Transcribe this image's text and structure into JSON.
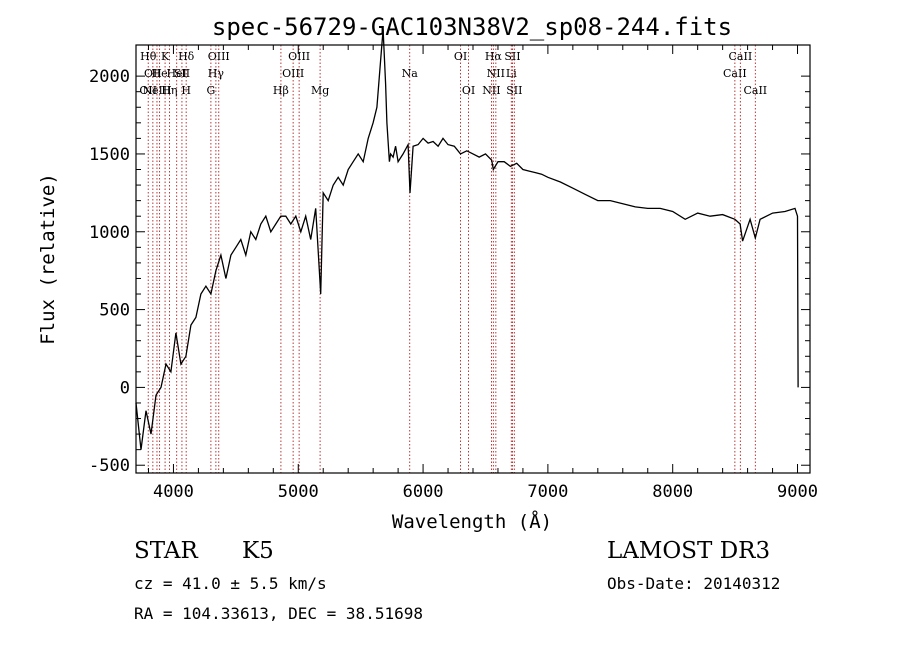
{
  "chart_data": {
    "type": "line",
    "title": "spec-56729-GAC103N38V2_sp08-244.fits",
    "xlabel": "Wavelength (Å)",
    "ylabel": "Flux (relative)",
    "xlim": [
      3700,
      9100
    ],
    "ylim": [
      -550,
      2200
    ],
    "xticks": [
      4000,
      5000,
      6000,
      7000,
      8000,
      9000
    ],
    "yticks": [
      -500,
      0,
      500,
      1000,
      1500,
      2000
    ],
    "line_color": "#000000",
    "marker_color": "#b22222",
    "series": [
      {
        "name": "flux",
        "x": [
          3700,
          3740,
          3780,
          3820,
          3860,
          3900,
          3940,
          3980,
          4020,
          4060,
          4100,
          4140,
          4180,
          4220,
          4260,
          4300,
          4340,
          4380,
          4420,
          4460,
          4500,
          4540,
          4580,
          4620,
          4660,
          4700,
          4740,
          4780,
          4820,
          4860,
          4900,
          4940,
          4980,
          5020,
          5060,
          5100,
          5140,
          5180,
          5200,
          5240,
          5280,
          5320,
          5360,
          5400,
          5440,
          5480,
          5520,
          5560,
          5600,
          5630,
          5660,
          5680,
          5700,
          5710,
          5720,
          5730,
          5740,
          5760,
          5780,
          5800,
          5840,
          5880,
          5895,
          5920,
          5960,
          6000,
          6040,
          6080,
          6120,
          6160,
          6200,
          6250,
          6300,
          6350,
          6400,
          6450,
          6500,
          6550,
          6563,
          6600,
          6650,
          6700,
          6750,
          6800,
          6850,
          6900,
          6950,
          7000,
          7100,
          7200,
          7300,
          7400,
          7500,
          7600,
          7700,
          7800,
          7900,
          8000,
          8100,
          8200,
          8300,
          8400,
          8498,
          8540,
          8560,
          8620,
          8662,
          8700,
          8800,
          8900,
          8980,
          9000,
          9005
        ],
        "y": [
          -100,
          -400,
          -150,
          -300,
          -50,
          0,
          150,
          100,
          350,
          150,
          200,
          400,
          450,
          600,
          650,
          600,
          750,
          850,
          700,
          850,
          900,
          950,
          850,
          1000,
          950,
          1050,
          1100,
          1000,
          1050,
          1100,
          1100,
          1050,
          1100,
          1000,
          1100,
          950,
          1150,
          600,
          1250,
          1200,
          1300,
          1350,
          1300,
          1400,
          1450,
          1500,
          1450,
          1600,
          1700,
          1800,
          2100,
          2300,
          1950,
          1700,
          1580,
          1450,
          1500,
          1480,
          1550,
          1450,
          1500,
          1560,
          1250,
          1550,
          1560,
          1600,
          1570,
          1580,
          1550,
          1600,
          1560,
          1550,
          1500,
          1520,
          1500,
          1480,
          1500,
          1460,
          1400,
          1450,
          1450,
          1420,
          1440,
          1400,
          1390,
          1380,
          1370,
          1350,
          1320,
          1280,
          1240,
          1200,
          1200,
          1180,
          1160,
          1150,
          1150,
          1130,
          1080,
          1120,
          1100,
          1110,
          1080,
          1050,
          940,
          1080,
          960,
          1080,
          1120,
          1130,
          1150,
          1100,
          0
        ]
      }
    ],
    "lines": [
      {
        "x": 3798,
        "labels": [
          "Hθ",
          "",
          "OII"
        ]
      },
      {
        "x": 3835,
        "labels": [
          "",
          "OII",
          ""
        ]
      },
      {
        "x": 3868,
        "labels": [
          "",
          "",
          "NeIII"
        ]
      },
      {
        "x": 3889,
        "labels": [
          "",
          "He",
          ""
        ]
      },
      {
        "x": 3933,
        "labels": [
          "K",
          "",
          ""
        ]
      },
      {
        "x": 3968,
        "labels": [
          "",
          "",
          "Hη"
        ]
      },
      {
        "x": 4026,
        "labels": [
          "",
          "HeI",
          ""
        ]
      },
      {
        "x": 4068,
        "labels": [
          "",
          "SII",
          ""
        ]
      },
      {
        "x": 4102,
        "labels": [
          "Hδ",
          "",
          "H"
        ]
      },
      {
        "x": 4300,
        "labels": [
          "",
          "",
          "G"
        ]
      },
      {
        "x": 4340,
        "labels": [
          "",
          "Hγ",
          ""
        ]
      },
      {
        "x": 4363,
        "labels": [
          "OIII",
          "",
          ""
        ]
      },
      {
        "x": 4861,
        "labels": [
          "",
          "",
          "Hβ"
        ]
      },
      {
        "x": 4959,
        "labels": [
          "",
          "OIII",
          ""
        ]
      },
      {
        "x": 5007,
        "labels": [
          "OIII",
          "",
          ""
        ]
      },
      {
        "x": 5175,
        "labels": [
          "",
          "",
          "Mg"
        ]
      },
      {
        "x": 5893,
        "labels": [
          "",
          "Na",
          ""
        ]
      },
      {
        "x": 6300,
        "labels": [
          "OI",
          "",
          ""
        ]
      },
      {
        "x": 6364,
        "labels": [
          "",
          "",
          "OI"
        ]
      },
      {
        "x": 6548,
        "labels": [
          "",
          "",
          "NII"
        ]
      },
      {
        "x": 6563,
        "labels": [
          "Hα",
          "",
          ""
        ]
      },
      {
        "x": 6583,
        "labels": [
          "",
          "NII",
          ""
        ]
      },
      {
        "x": 6707,
        "labels": [
          "",
          "Li",
          ""
        ]
      },
      {
        "x": 6716,
        "labels": [
          "SII",
          "",
          ""
        ]
      },
      {
        "x": 6731,
        "labels": [
          "",
          "",
          "SII"
        ]
      },
      {
        "x": 8498,
        "labels": [
          "",
          "CaII",
          ""
        ]
      },
      {
        "x": 8542,
        "labels": [
          "CaII",
          "",
          ""
        ]
      },
      {
        "x": 8662,
        "labels": [
          "",
          "",
          "CaII"
        ]
      }
    ]
  },
  "info": {
    "object_class": "STAR",
    "subclass": "K5",
    "redshift": "cz =  41.0 ± 5.5 km/s",
    "coords": "RA = 104.33613, DEC =  38.51698",
    "survey": "LAMOST DR3",
    "obs_date": "Obs-Date: 20140312"
  }
}
